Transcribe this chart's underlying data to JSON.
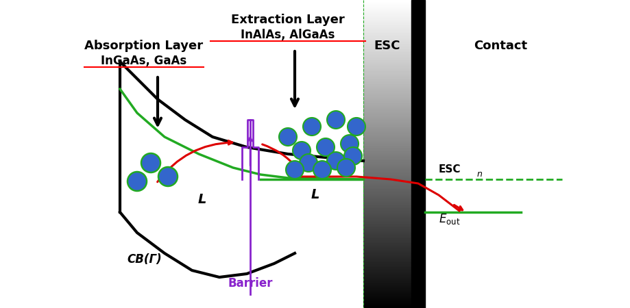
{
  "bg_color": "#ffffff",
  "absorption_label": "Absorption Layer",
  "absorption_sublabel": "InGaAs, GaAs",
  "extraction_label": "Extraction Layer",
  "extraction_sublabel": "InAlAs, AlGaAs",
  "esc_label": "ESC",
  "contact_label": "Contact",
  "cb_label": "CB(Γ)",
  "barrier_label": "Barrier",
  "L_label": "L",
  "colors": {
    "black": "#000000",
    "green": "#22aa22",
    "red": "#dd0000",
    "purple": "#8822cc",
    "blue_circle": "#3366cc",
    "green_edge": "#22aa22",
    "dashed_green": "#22aa22"
  },
  "figsize": [
    9.2,
    4.5
  ],
  "dpi": 100
}
